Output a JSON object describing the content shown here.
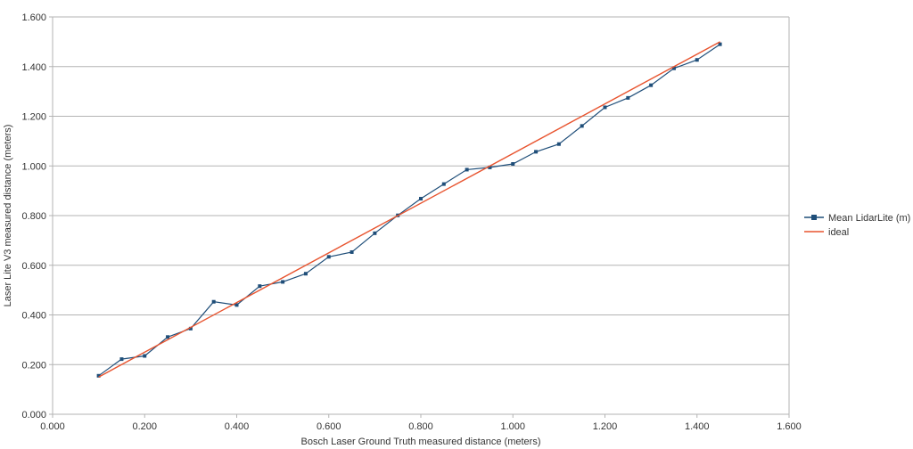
{
  "chart_data": {
    "type": "line",
    "title": "",
    "xlabel": "Bosch Laser Ground Truth measured distance (meters)",
    "ylabel": "Laser Lite V3 measured distance (meters)",
    "xlim": [
      0,
      1.6
    ],
    "ylim": [
      0,
      1.6
    ],
    "xticks": [
      "0.000",
      "0.200",
      "0.400",
      "0.600",
      "0.800",
      "1.000",
      "1.200",
      "1.400",
      "1.600"
    ],
    "yticks": [
      "0.000",
      "0.200",
      "0.400",
      "0.600",
      "0.800",
      "1.000",
      "1.200",
      "1.400",
      "1.600"
    ],
    "grid": "horizontal",
    "legend_position": "right",
    "series": [
      {
        "name": "Mean LidarLite (m)",
        "color": "#1f4e79",
        "marker": "square",
        "x": [
          0.1,
          0.15,
          0.2,
          0.25,
          0.3,
          0.35,
          0.4,
          0.45,
          0.5,
          0.55,
          0.6,
          0.65,
          0.7,
          0.75,
          0.8,
          0.85,
          0.9,
          0.95,
          1.0,
          1.05,
          1.1,
          1.15,
          1.2,
          1.25,
          1.3,
          1.35,
          1.4,
          1.45
        ],
        "y": [
          0.155,
          0.222,
          0.235,
          0.311,
          0.345,
          0.453,
          0.44,
          0.516,
          0.533,
          0.566,
          0.634,
          0.653,
          0.729,
          0.801,
          0.868,
          0.927,
          0.985,
          0.994,
          1.008,
          1.057,
          1.088,
          1.161,
          1.236,
          1.274,
          1.325,
          1.393,
          1.427,
          1.49
        ]
      },
      {
        "name": "ideal",
        "color": "#e8542f",
        "marker": "none",
        "x": [
          0.1,
          1.45
        ],
        "y": [
          0.15,
          1.5
        ]
      }
    ]
  }
}
